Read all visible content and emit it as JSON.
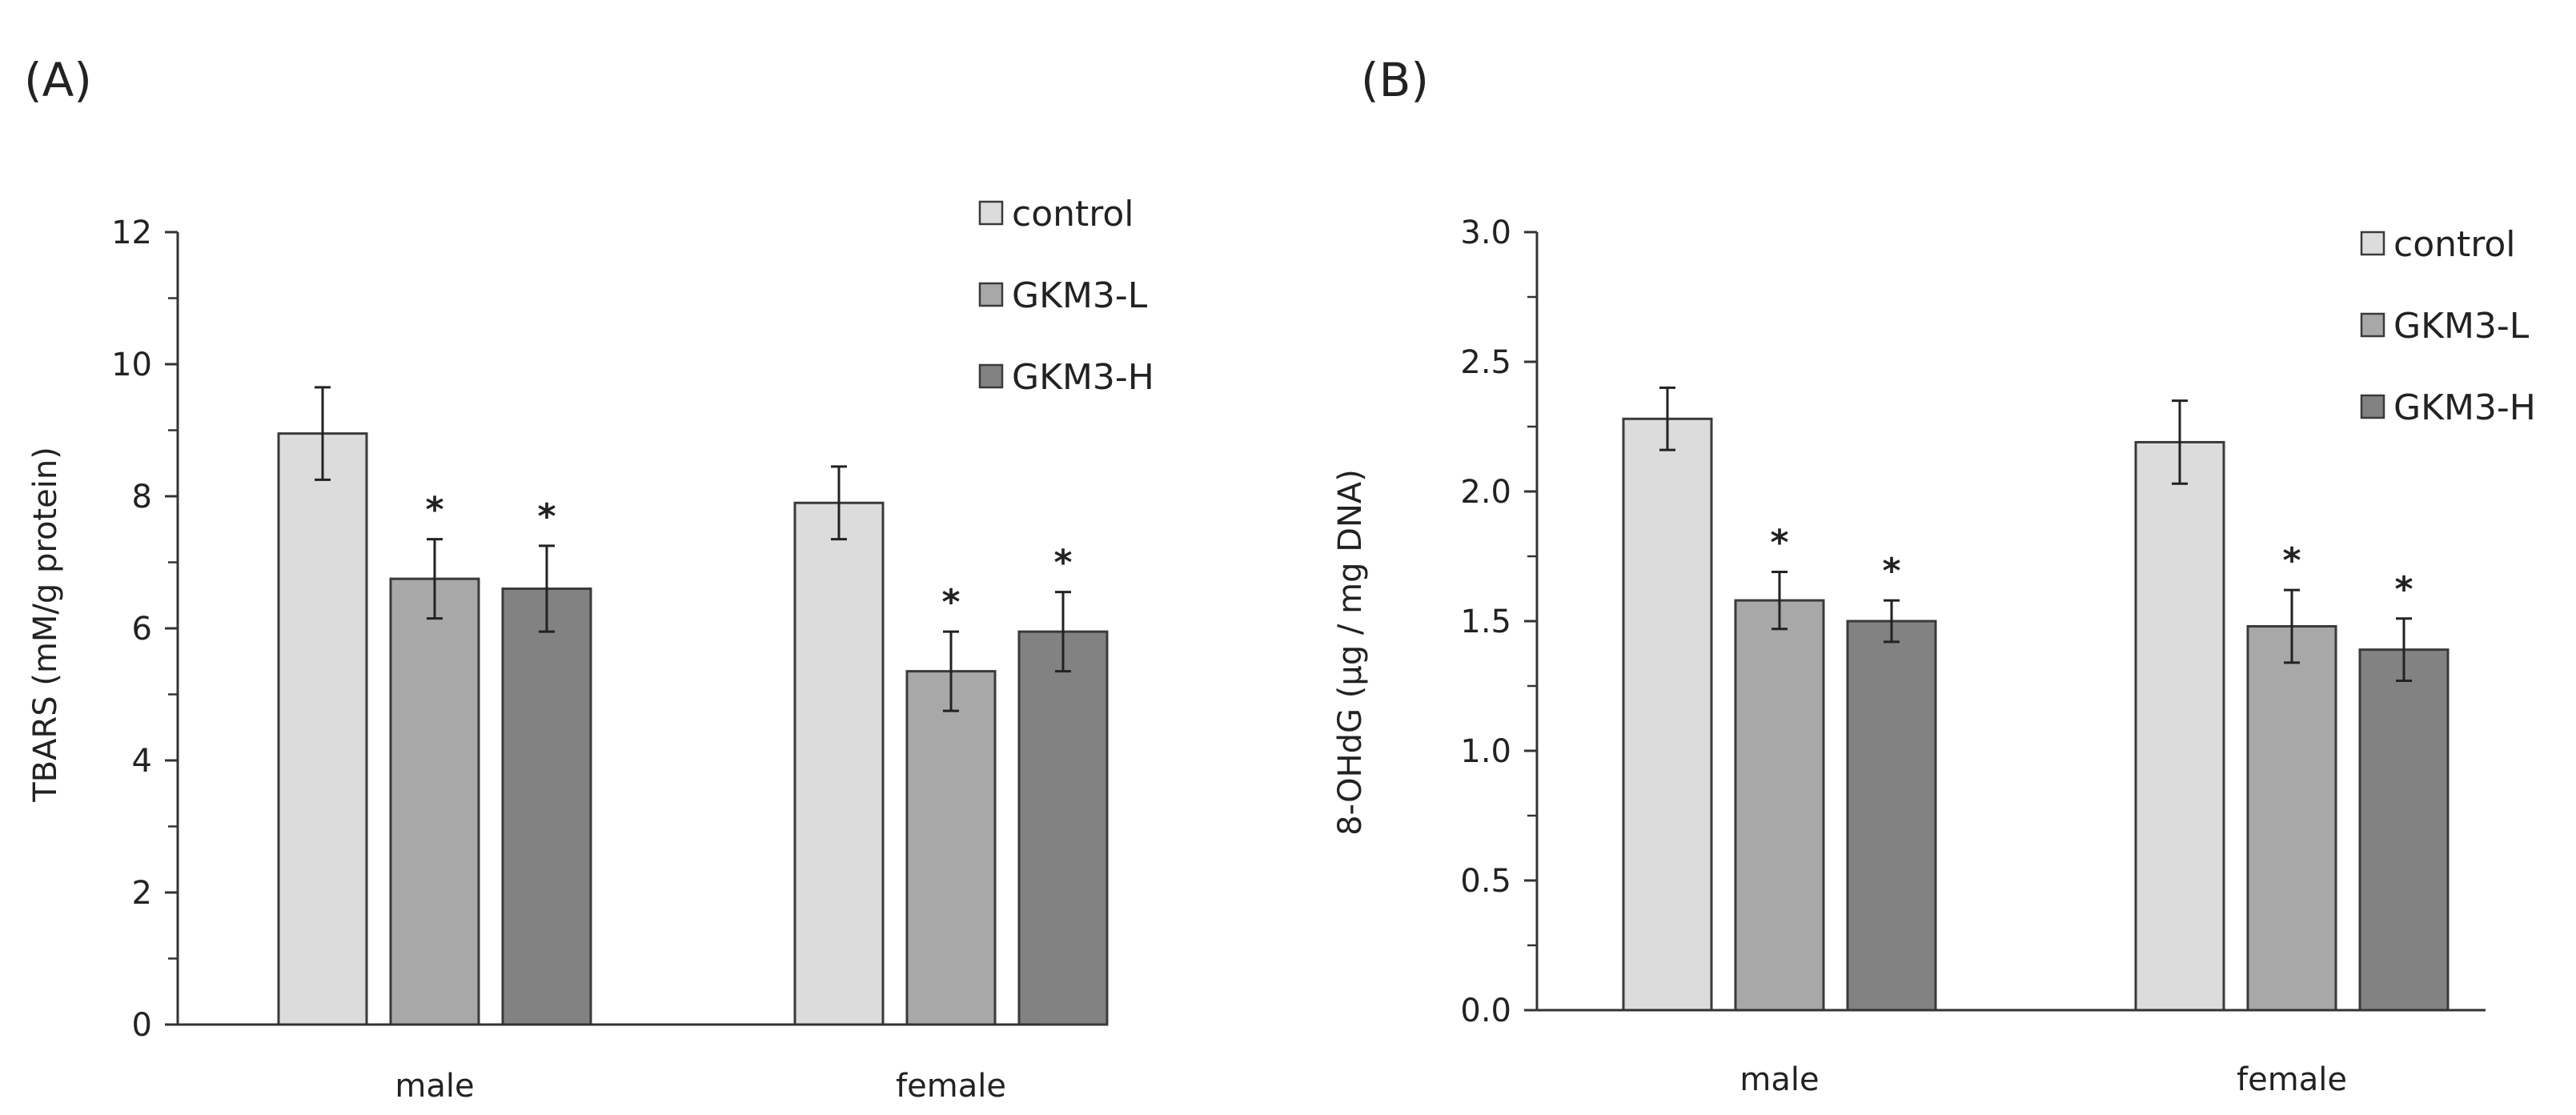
{
  "chart_data": [
    {
      "panel_label": "(A)",
      "type": "bar",
      "title": "",
      "xlabel": "",
      "ylabel": "TBARS (mM/g protein)",
      "categories": [
        "male",
        "female"
      ],
      "ylim": [
        0,
        12
      ],
      "yticks": [
        "0",
        "2",
        "4",
        "6",
        "8",
        "10",
        "12"
      ],
      "grid": false,
      "legend_position": "top-right",
      "series": [
        {
          "name": "control",
          "color": "#dcdcdc",
          "values": [
            8.95,
            7.9
          ],
          "errors": [
            0.7,
            0.55
          ],
          "significant": [
            false,
            false
          ]
        },
        {
          "name": "GKM3-L",
          "color": "#a8a8a8",
          "values": [
            6.75,
            5.35
          ],
          "errors": [
            0.6,
            0.6
          ],
          "significant": [
            true,
            true
          ]
        },
        {
          "name": "GKM3-H",
          "color": "#828282",
          "values": [
            6.6,
            5.95
          ],
          "errors": [
            0.65,
            0.6
          ],
          "significant": [
            true,
            true
          ]
        }
      ],
      "significance_marker": "*"
    },
    {
      "panel_label": "(B)",
      "type": "bar",
      "title": "",
      "xlabel": "",
      "ylabel": "8-OHdG (μg / mg DNA)",
      "categories": [
        "male",
        "female"
      ],
      "ylim": [
        0,
        3
      ],
      "yticks": [
        "0.0",
        "0.5",
        "1.0",
        "1.5",
        "2.0",
        "2.5",
        "3.0"
      ],
      "grid": false,
      "legend_position": "top-right",
      "series": [
        {
          "name": "control",
          "color": "#dcdcdc",
          "values": [
            2.28,
            2.19
          ],
          "errors": [
            0.12,
            0.16
          ],
          "significant": [
            false,
            false
          ]
        },
        {
          "name": "GKM3-L",
          "color": "#a8a8a8",
          "values": [
            1.58,
            1.48
          ],
          "errors": [
            0.11,
            0.14
          ],
          "significant": [
            true,
            true
          ]
        },
        {
          "name": "GKM3-H",
          "color": "#828282",
          "values": [
            1.5,
            1.39
          ],
          "errors": [
            0.08,
            0.12
          ],
          "significant": [
            true,
            true
          ]
        }
      ],
      "significance_marker": "*"
    }
  ]
}
